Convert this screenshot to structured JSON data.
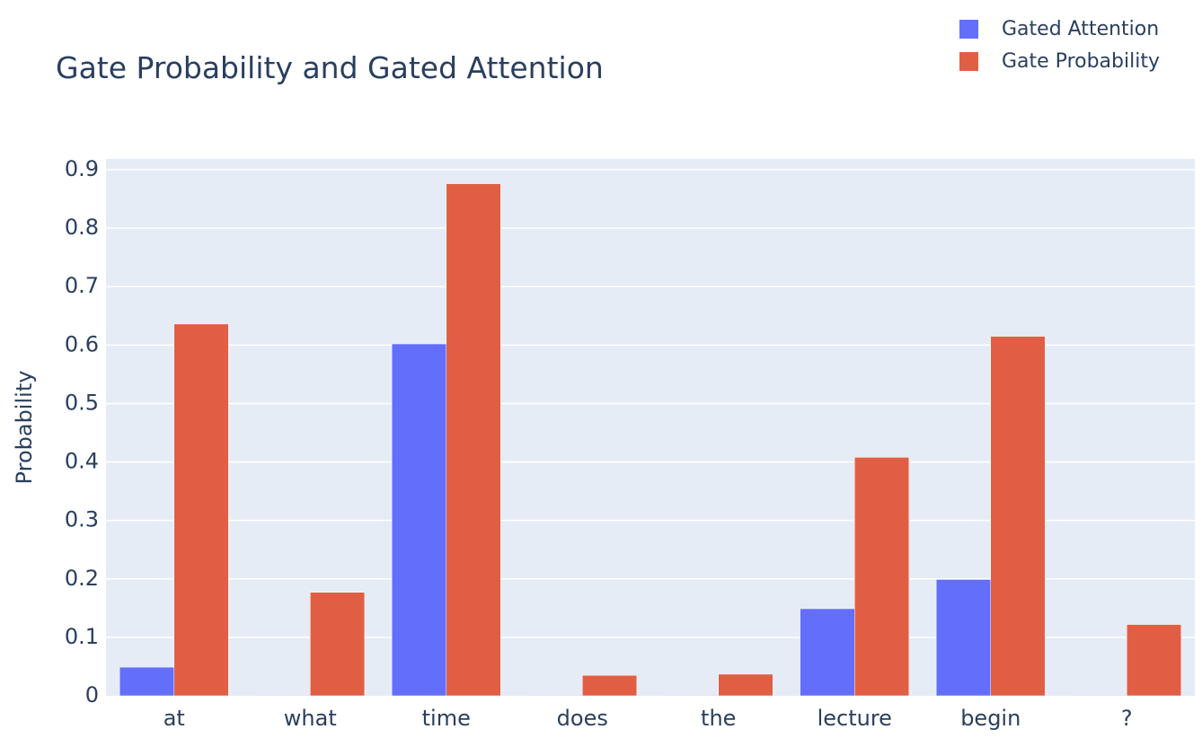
{
  "chart_data": {
    "type": "bar",
    "title": "Gate Probability and Gated Attention",
    "xlabel": "",
    "ylabel": "Probability",
    "categories": [
      "at",
      "what",
      "time",
      "does",
      "the",
      "lecture",
      "begin",
      "?"
    ],
    "ylim": [
      0,
      0.9
    ],
    "yticks": [
      0,
      0.1,
      0.2,
      0.3,
      0.4,
      0.5,
      0.6,
      0.7,
      0.8,
      0.9
    ],
    "ytick_labels": [
      "0",
      "0.1",
      "0.2",
      "0.3",
      "0.4",
      "0.5",
      "0.6",
      "0.7",
      "0.8",
      "0.9"
    ],
    "series": [
      {
        "name": "Gated Attention",
        "color": "#636efa",
        "values": [
          0.049,
          0.001,
          0.602,
          0.001,
          0.001,
          0.149,
          0.199,
          0.001
        ]
      },
      {
        "name": "Gate Probability",
        "color": "#e05f44",
        "values": [
          0.636,
          0.177,
          0.876,
          0.035,
          0.037,
          0.408,
          0.615,
          0.122
        ]
      }
    ],
    "grid": true,
    "legend_position": "top-right",
    "plot_background": "#e5ecf6"
  }
}
